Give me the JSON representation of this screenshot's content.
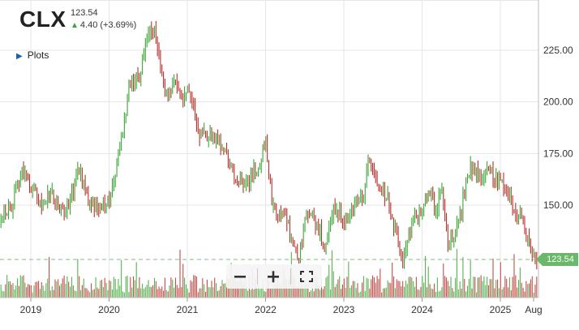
{
  "symbol": "CLX",
  "last_price": "123.54",
  "change_text": "4.40 (+3.69%)",
  "plots_label": "Plots",
  "zoom": {
    "out_icon": "minus-icon",
    "in_icon": "plus-icon",
    "full_icon": "fullscreen-icon"
  },
  "colors": {
    "up": "#3aa635",
    "down": "#b5312b",
    "badge": "#6ab96a",
    "grid": "#e6e6e6"
  },
  "chart_data": {
    "type": "ohlc",
    "title": "",
    "y_ticks": [
      150,
      175,
      200,
      225
    ],
    "y_tick_labels": [
      "150.00",
      "175.00",
      "200.00",
      "225.00"
    ],
    "ylim": [
      118,
      241
    ],
    "x_ticks": [
      "2019",
      "2020",
      "2021",
      "2022",
      "2023",
      "2024",
      "2025",
      "Aug"
    ],
    "xlim": [
      2018.58,
      2025.66
    ],
    "grid": true,
    "last_price_marker": 123.54,
    "price_path": [
      [
        2018.58,
        144
      ],
      [
        2018.75,
        150
      ],
      [
        2018.88,
        166
      ],
      [
        2019.0,
        160
      ],
      [
        2019.12,
        150
      ],
      [
        2019.25,
        155
      ],
      [
        2019.38,
        146
      ],
      [
        2019.5,
        153
      ],
      [
        2019.62,
        166
      ],
      [
        2019.75,
        152
      ],
      [
        2019.88,
        148
      ],
      [
        2020.0,
        152
      ],
      [
        2020.08,
        165
      ],
      [
        2020.18,
        185
      ],
      [
        2020.25,
        206
      ],
      [
        2020.38,
        212
      ],
      [
        2020.5,
        233
      ],
      [
        2020.58,
        236
      ],
      [
        2020.67,
        212
      ],
      [
        2020.75,
        205
      ],
      [
        2020.83,
        211
      ],
      [
        2020.92,
        201
      ],
      [
        2021.0,
        205
      ],
      [
        2021.08,
        196
      ],
      [
        2021.17,
        184
      ],
      [
        2021.33,
        184
      ],
      [
        2021.42,
        180
      ],
      [
        2021.5,
        176
      ],
      [
        2021.58,
        165
      ],
      [
        2021.75,
        161
      ],
      [
        2021.83,
        164
      ],
      [
        2021.92,
        170
      ],
      [
        2022.0,
        182
      ],
      [
        2022.08,
        152
      ],
      [
        2022.17,
        145
      ],
      [
        2022.25,
        147
      ],
      [
        2022.33,
        134
      ],
      [
        2022.42,
        124
      ],
      [
        2022.5,
        142
      ],
      [
        2022.58,
        146
      ],
      [
        2022.67,
        139
      ],
      [
        2022.75,
        130
      ],
      [
        2022.83,
        145
      ],
      [
        2022.92,
        149
      ],
      [
        2023.0,
        140
      ],
      [
        2023.08,
        146
      ],
      [
        2023.17,
        153
      ],
      [
        2023.25,
        156
      ],
      [
        2023.33,
        173
      ],
      [
        2023.42,
        161
      ],
      [
        2023.5,
        158
      ],
      [
        2023.58,
        150
      ],
      [
        2023.67,
        135
      ],
      [
        2023.75,
        120
      ],
      [
        2023.83,
        137
      ],
      [
        2023.92,
        145
      ],
      [
        2024.0,
        145
      ],
      [
        2024.08,
        158
      ],
      [
        2024.17,
        148
      ],
      [
        2024.25,
        156
      ],
      [
        2024.33,
        132
      ],
      [
        2024.42,
        135
      ],
      [
        2024.5,
        147
      ],
      [
        2024.58,
        166
      ],
      [
        2024.67,
        168
      ],
      [
        2024.75,
        164
      ],
      [
        2024.83,
        170
      ],
      [
        2024.92,
        162
      ],
      [
        2025.0,
        164
      ],
      [
        2025.08,
        158
      ],
      [
        2025.17,
        145
      ],
      [
        2025.25,
        144
      ],
      [
        2025.33,
        136
      ],
      [
        2025.42,
        125
      ],
      [
        2025.46,
        120
      ],
      [
        2025.48,
        123.54
      ]
    ]
  }
}
